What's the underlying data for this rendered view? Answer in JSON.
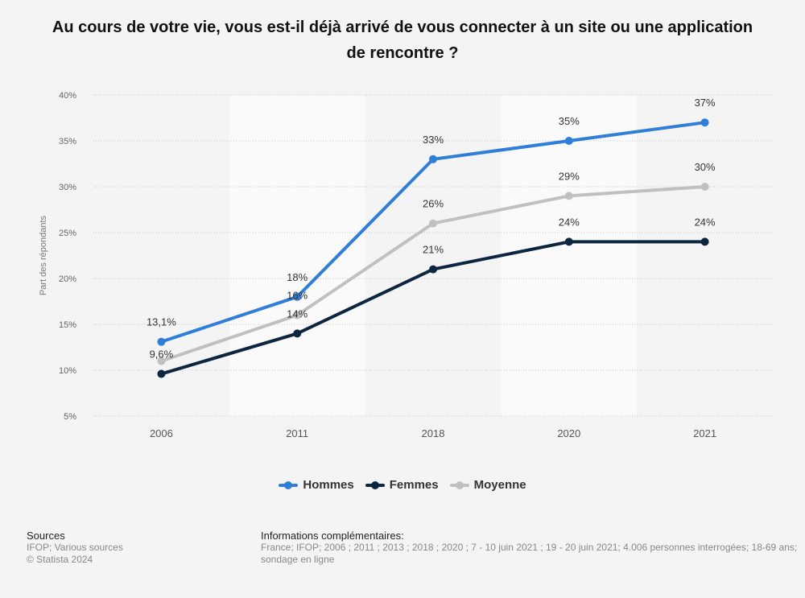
{
  "chart_data": {
    "type": "line",
    "title": "Au cours de votre vie, vous est-il déjà arrivé de vous connecter à un site ou une application de rencontre ?",
    "xlabel": "",
    "ylabel": "Part des répondants",
    "categories": [
      "2006",
      "2011",
      "2018",
      "2020",
      "2021"
    ],
    "ylim": [
      5,
      40
    ],
    "yticks": [
      5,
      10,
      15,
      20,
      25,
      30,
      35,
      40
    ],
    "ytick_labels": [
      "5%",
      "10%",
      "15%",
      "20%",
      "25%",
      "30%",
      "35%",
      "40%"
    ],
    "grid": true,
    "legend_position": "bottom-center",
    "series": [
      {
        "name": "Hommes",
        "color": "#2f7ed8",
        "values": [
          13.1,
          18,
          33,
          35,
          37
        ],
        "labels": [
          "13,1%",
          "18%",
          "33%",
          "35%",
          "37%"
        ]
      },
      {
        "name": "Femmes",
        "color": "#0d2640",
        "values": [
          9.6,
          14,
          21,
          24,
          24
        ],
        "labels": [
          "9,6%",
          "14%",
          "21%",
          "24%",
          "24%"
        ]
      },
      {
        "name": "Moyenne",
        "color": "#c0c0c0",
        "values": [
          11,
          16,
          26,
          29,
          30
        ],
        "labels": [
          "",
          "16%",
          "26%",
          "29%",
          "30%"
        ]
      }
    ]
  },
  "footer": {
    "sources_heading": "Sources",
    "sources_line1": "IFOP; Various sources",
    "sources_line2": "© Statista 2024",
    "info_heading": "Informations complémentaires:",
    "info_line1": "France; IFOP; 2006 ; 2011 ; 2013 ; 2018 ; 2020 ; 7 - 10 juin 2021 ; 19 - 20 juin 2021; 4.006 personnes interrogées; 18-69 ans;",
    "info_line2": "sondage en ligne"
  }
}
